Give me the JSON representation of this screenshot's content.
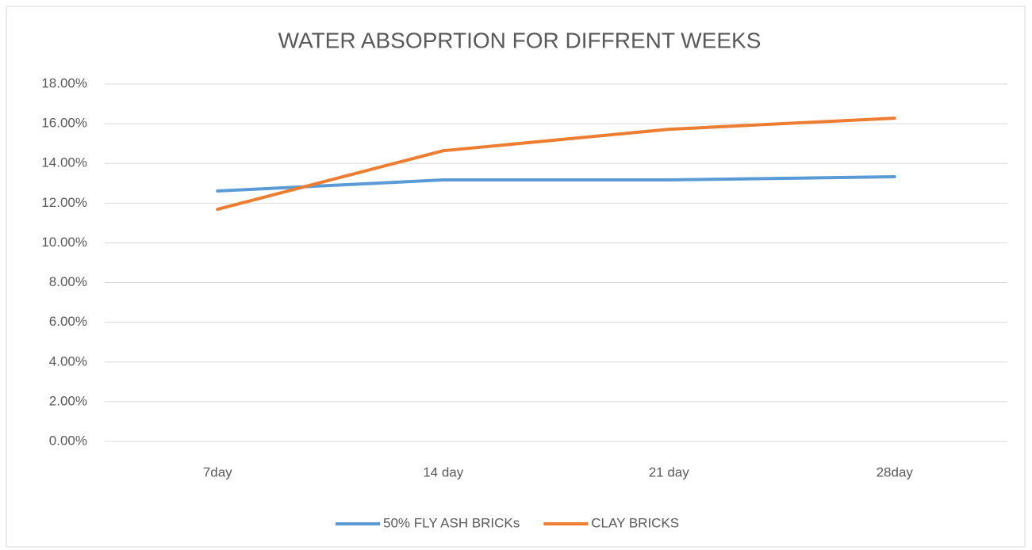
{
  "chart_data": {
    "type": "line",
    "title": "WATER ABSOPRTION FOR DIFFRENT WEEKS",
    "categories": [
      "7day",
      "14 day",
      "21 day",
      "28day"
    ],
    "series": [
      {
        "name": "50% FLY ASH BRICKs",
        "color": "#5b9bd5",
        "values": [
          12.61,
          13.17,
          13.17,
          13.33
        ]
      },
      {
        "name": "CLAY BRICKS",
        "color": "#ed7d31",
        "values": [
          11.69,
          14.64,
          15.72,
          16.28
        ]
      }
    ],
    "ylim": [
      0,
      18
    ],
    "yticks": [
      {
        "value": 0,
        "label": "0.00%"
      },
      {
        "value": 2,
        "label": "2.00%"
      },
      {
        "value": 4,
        "label": "4.00%"
      },
      {
        "value": 6,
        "label": "6.00%"
      },
      {
        "value": 8,
        "label": "8.00%"
      },
      {
        "value": 10,
        "label": "10.00%"
      },
      {
        "value": 12,
        "label": "12.00%"
      },
      {
        "value": 14,
        "label": "14.00%"
      },
      {
        "value": 16,
        "label": "16.00%"
      },
      {
        "value": 18,
        "label": "18.00%"
      }
    ],
    "grid": true,
    "legend": "bottom"
  }
}
